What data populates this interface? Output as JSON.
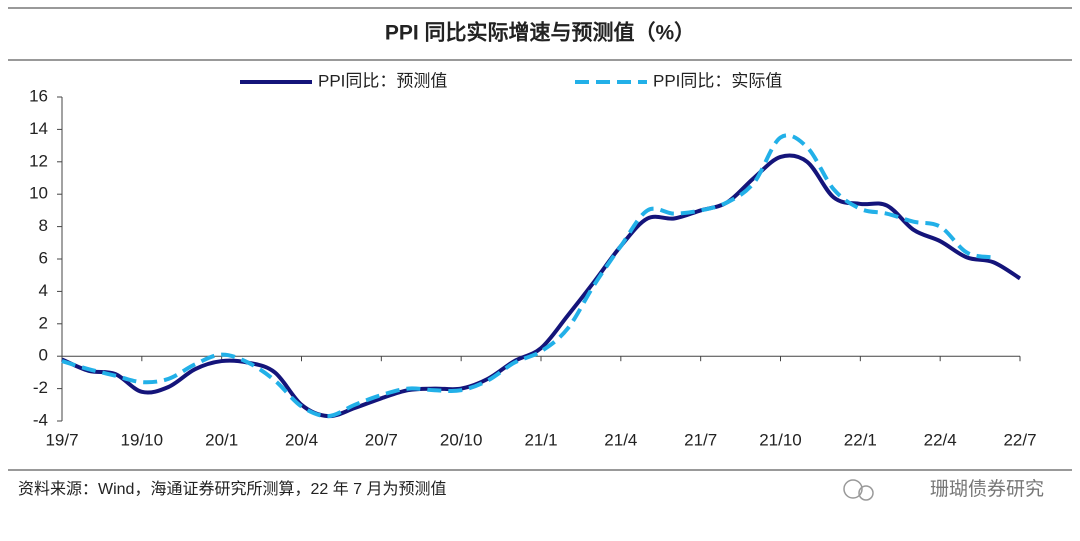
{
  "chart_data": {
    "type": "line",
    "title": "PPI 同比实际增速与预测值（%）",
    "source": "资料来源：Wind，海通证券研究所测算，22 年 7 月为预测值",
    "watermark": "珊瑚债券研究",
    "categories": [
      "19/7",
      null,
      null,
      "19/10",
      null,
      null,
      "20/1",
      null,
      null,
      "20/4",
      null,
      null,
      "20/7",
      null,
      null,
      "20/10",
      null,
      null,
      "21/1",
      null,
      null,
      "21/4",
      null,
      null,
      "21/7",
      null,
      null,
      "21/10",
      null,
      null,
      "22/1",
      null,
      null,
      "22/4",
      null,
      null,
      "22/7"
    ],
    "series": [
      {
        "name": "PPI同比：预测值",
        "color": "#14147a",
        "dash": false,
        "values": [
          -0.2,
          -0.9,
          -1.1,
          -2.2,
          -1.9,
          -0.8,
          -0.3,
          -0.4,
          -1.0,
          -3.0,
          -3.7,
          -3.2,
          -2.6,
          -2.1,
          -2.0,
          -2.0,
          -1.4,
          -0.3,
          0.5,
          2.5,
          4.6,
          6.8,
          8.5,
          8.5,
          9.0,
          9.5,
          11.0,
          12.3,
          12.0,
          9.8,
          9.4,
          9.3,
          7.8,
          7.1,
          6.1,
          5.8,
          4.8
        ]
      },
      {
        "name": "PPI同比：实际值",
        "color": "#22b0e8",
        "dash": true,
        "values": [
          -0.3,
          -0.8,
          -1.2,
          -1.6,
          -1.4,
          -0.5,
          0.1,
          -0.4,
          -1.5,
          -3.1,
          -3.7,
          -3.0,
          -2.4,
          -2.0,
          -2.1,
          -2.1,
          -1.5,
          -0.4,
          0.3,
          1.7,
          4.4,
          6.8,
          9.0,
          8.8,
          9.0,
          9.5,
          10.7,
          13.5,
          12.9,
          10.3,
          9.1,
          8.8,
          8.3,
          8.0,
          6.4,
          6.1,
          null
        ]
      }
    ],
    "ylim": [
      -4,
      16
    ],
    "yticks": [
      -4,
      -2,
      0,
      2,
      4,
      6,
      8,
      10,
      12,
      14,
      16
    ]
  }
}
